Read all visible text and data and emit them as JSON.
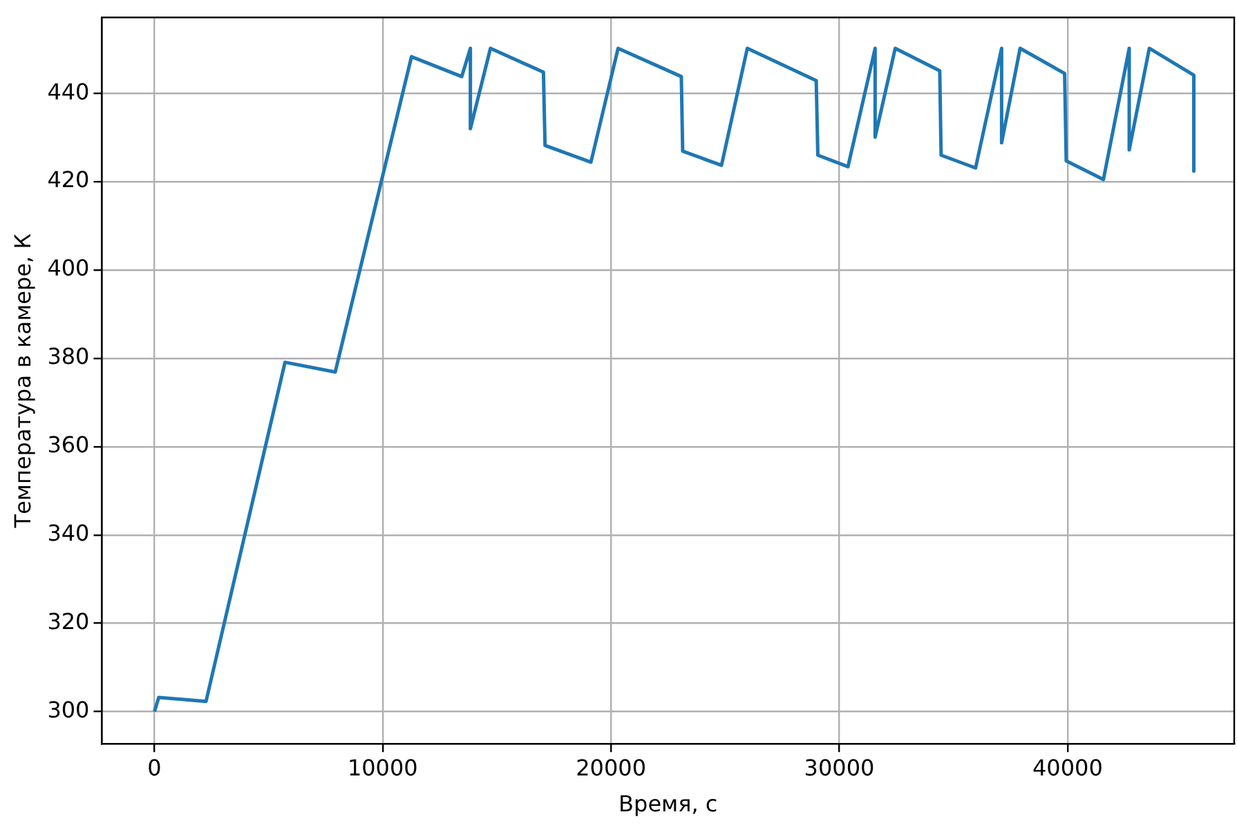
{
  "chart_data": {
    "type": "line",
    "xlabel": "Время, с",
    "ylabel": "Температура в камере, К",
    "xlim": [
      -2300,
      47300
    ],
    "ylim": [
      292.7,
      457.2
    ],
    "xticks": [
      0,
      10000,
      20000,
      30000,
      40000
    ],
    "yticks": [
      300,
      320,
      340,
      360,
      380,
      400,
      420,
      440
    ],
    "grid": true,
    "legend": false,
    "marker": "none",
    "line_style": "solid",
    "series": [
      {
        "color": "#1f77b4",
        "x": [
          0,
          190,
          2260,
          5720,
          7920,
          11260,
          13460,
          13840,
          13840,
          14720,
          17040,
          17110,
          19120,
          20310,
          23080,
          23140,
          24840,
          25970,
          28990,
          29060,
          30380,
          31570,
          31570,
          32450,
          34400,
          34460,
          35970,
          37110,
          37110,
          37920,
          39870,
          39940,
          41570,
          42700,
          42700,
          43580,
          45530,
          45530
        ],
        "values": [
          300,
          303.2,
          302.3,
          379.1,
          376.9,
          448.3,
          443.8,
          450.2,
          432.0,
          450.2,
          444.8,
          428.2,
          424.4,
          450.2,
          443.8,
          426.9,
          423.7,
          450.2,
          442.9,
          426.0,
          423.4,
          450.2,
          430.1,
          450.2,
          445.1,
          426.0,
          423.1,
          450.2,
          428.8,
          450.2,
          444.5,
          424.7,
          420.5,
          450.2,
          427.2,
          450.2,
          444.1,
          422.4
        ]
      }
    ]
  }
}
